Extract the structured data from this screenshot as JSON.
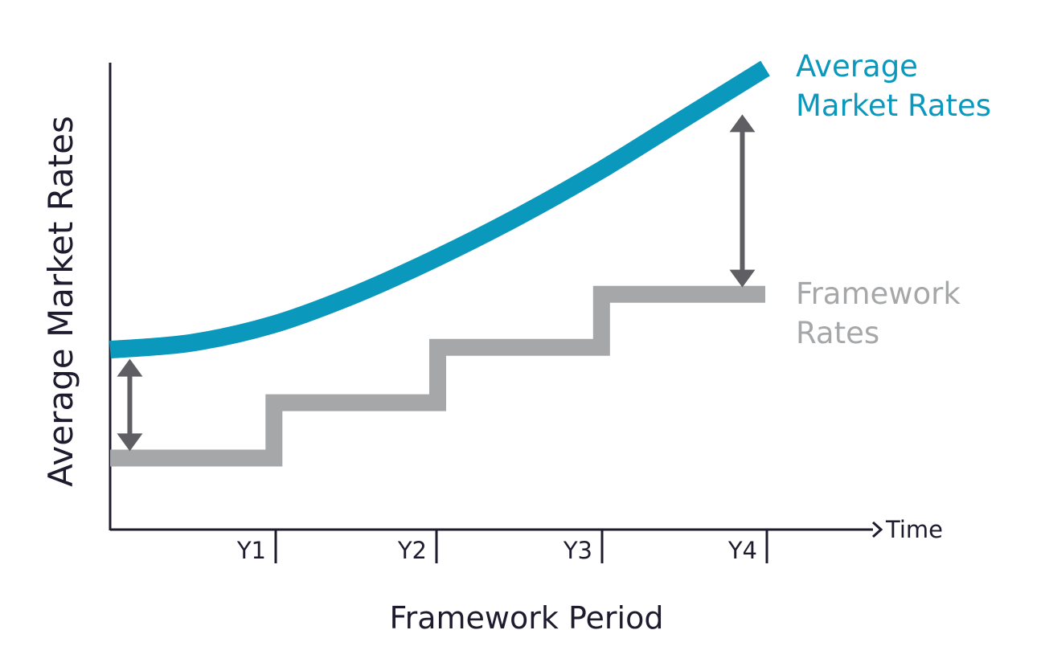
{
  "chart_data": {
    "type": "line",
    "ylabel": "Average Market Rates",
    "xlabel": "Framework Period",
    "x_end_label": "Time",
    "categories": [
      "Y1",
      "Y2",
      "Y3",
      "Y4"
    ],
    "xlim": [
      0,
      4
    ],
    "ylim": [
      0,
      10
    ],
    "grid": false,
    "legend": "right (inline labels at line ends)",
    "series": [
      {
        "name": "Average Market Rates",
        "label_lines": [
          "Average",
          "Market Rates"
        ],
        "style": "smooth-curve",
        "color": "#0a98bd",
        "x": [
          0,
          0.5,
          1,
          1.5,
          2,
          2.5,
          3,
          3.5,
          4
        ],
        "y": [
          3.9,
          4.05,
          4.45,
          5.1,
          5.9,
          6.8,
          7.8,
          8.9,
          10.0
        ]
      },
      {
        "name": "Framework Rates",
        "label_lines": [
          "Framework",
          "Rates"
        ],
        "style": "step",
        "color": "#a6a7a9",
        "x": [
          0,
          1,
          1,
          2,
          2,
          3,
          3,
          4
        ],
        "y": [
          1.55,
          1.55,
          2.75,
          2.75,
          3.95,
          3.95,
          5.1,
          5.1
        ]
      }
    ],
    "annotations": [
      {
        "type": "double-arrow",
        "color": "#5f5f63",
        "x": 0.12,
        "y_from": 1.7,
        "y_to": 3.7
      },
      {
        "type": "double-arrow",
        "color": "#5f5f63",
        "x": 3.86,
        "y_from": 5.25,
        "y_to": 9.0
      }
    ]
  }
}
